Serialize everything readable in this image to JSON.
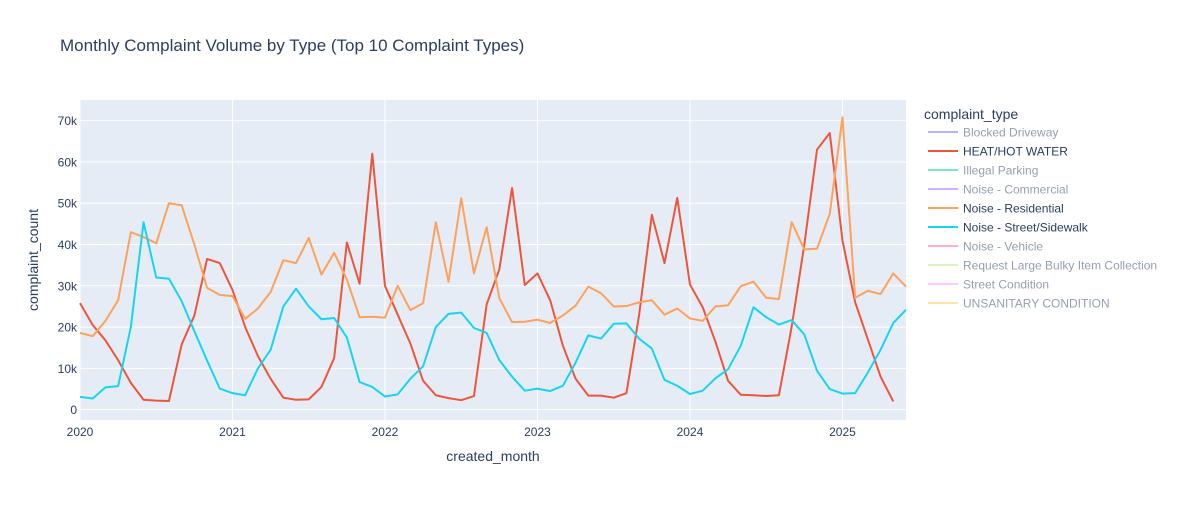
{
  "chart_data": {
    "type": "line",
    "title": "Monthly Complaint Volume by Type (Top 10 Complaint Types)",
    "xlabel": "created_month",
    "ylabel": "complaint_count",
    "x_start": "2020-01",
    "x_tick_labels": [
      "2020",
      "2021",
      "2022",
      "2023",
      "2024",
      "2025"
    ],
    "y_ticks": [
      0,
      10000,
      20000,
      30000,
      40000,
      50000,
      60000,
      70000
    ],
    "y_tick_labels": [
      "0",
      "10k",
      "20k",
      "30k",
      "40k",
      "50k",
      "60k",
      "70k"
    ],
    "xlim": [
      "2020-01",
      "2025-06"
    ],
    "ylim": [
      -2500,
      75000
    ],
    "grid": true,
    "plot_background": "#e5ecf6",
    "legend": {
      "title": "complaint_type",
      "placement": "right",
      "items": [
        {
          "name": "Blocked Driveway",
          "color": "#636efa",
          "visible": false
        },
        {
          "name": "HEAT/HOT WATER",
          "color": "#ef553b",
          "visible": true
        },
        {
          "name": "Illegal Parking",
          "color": "#00cc96",
          "visible": false
        },
        {
          "name": "Noise - Commercial",
          "color": "#ab63fa",
          "visible": false
        },
        {
          "name": "Noise - Residential",
          "color": "#ffa15a",
          "visible": true
        },
        {
          "name": "Noise - Street/Sidewalk",
          "color": "#19d3f3",
          "visible": true
        },
        {
          "name": "Noise - Vehicle",
          "color": "#ff6692",
          "visible": false
        },
        {
          "name": "Request Large Bulky Item Collection",
          "color": "#b6e880",
          "visible": false
        },
        {
          "name": "Street Condition",
          "color": "#ff97ff",
          "visible": false
        },
        {
          "name": "UNSANITARY CONDITION",
          "color": "#fecb52",
          "visible": false
        }
      ]
    },
    "series": [
      {
        "name": "HEAT/HOT WATER",
        "color": "#ef553b",
        "values": [
          25800,
          20500,
          16800,
          12000,
          6500,
          2400,
          2200,
          2100,
          15800,
          22800,
          36500,
          35500,
          29000,
          20000,
          13000,
          7500,
          2900,
          2400,
          2500,
          5500,
          12500,
          40500,
          30500,
          62000,
          30000,
          23000,
          16000,
          7000,
          3500,
          2800,
          2300,
          3300,
          25500,
          34000,
          53700,
          30200,
          33000,
          26500,
          15500,
          7500,
          3400,
          3400,
          2900,
          4000,
          23000,
          47200,
          35500,
          51300,
          30300,
          24800,
          16500,
          7000,
          3600,
          3500,
          3300,
          3500,
          20000,
          40000,
          63000,
          67000,
          41000,
          26000,
          17000,
          8000,
          2000
        ]
      },
      {
        "name": "Noise - Residential",
        "color": "#ffa15a",
        "values": [
          18600,
          17800,
          21500,
          26500,
          43000,
          41800,
          40300,
          50000,
          49500,
          40000,
          29500,
          27800,
          27500,
          22000,
          24500,
          28500,
          36200,
          35500,
          41600,
          32700,
          38000,
          31500,
          22400,
          22500,
          22300,
          30000,
          24100,
          25800,
          45400,
          31000,
          51200,
          33000,
          44200,
          27000,
          21200,
          21300,
          21800,
          21000,
          22800,
          25200,
          29800,
          28200,
          25000,
          25100,
          26000,
          26500,
          23000,
          24500,
          22100,
          21500,
          25000,
          25300,
          29900,
          31000,
          27100,
          26800,
          45400,
          38800,
          39000,
          47400,
          70800,
          27100,
          28800,
          28000,
          33000,
          29800
        ]
      },
      {
        "name": "Noise - Street/Sidewalk",
        "color": "#19d3f3",
        "values": [
          3100,
          2700,
          5400,
          5700,
          20000,
          45400,
          32000,
          31700,
          26300,
          19000,
          11900,
          5100,
          4000,
          3500,
          10000,
          14500,
          25000,
          29300,
          25000,
          21900,
          22200,
          17500,
          6700,
          5500,
          3200,
          3700,
          7500,
          10500,
          20000,
          23200,
          23500,
          19800,
          18600,
          12000,
          8000,
          4600,
          5100,
          4500,
          5800,
          11400,
          18000,
          17200,
          20800,
          20900,
          17200,
          14800,
          7200,
          5800,
          3800,
          4600,
          7600,
          9800,
          15500,
          24800,
          22400,
          20600,
          21700,
          18200,
          9400,
          5000,
          3900,
          4000,
          9000,
          14500,
          21000,
          24200
        ]
      }
    ]
  }
}
